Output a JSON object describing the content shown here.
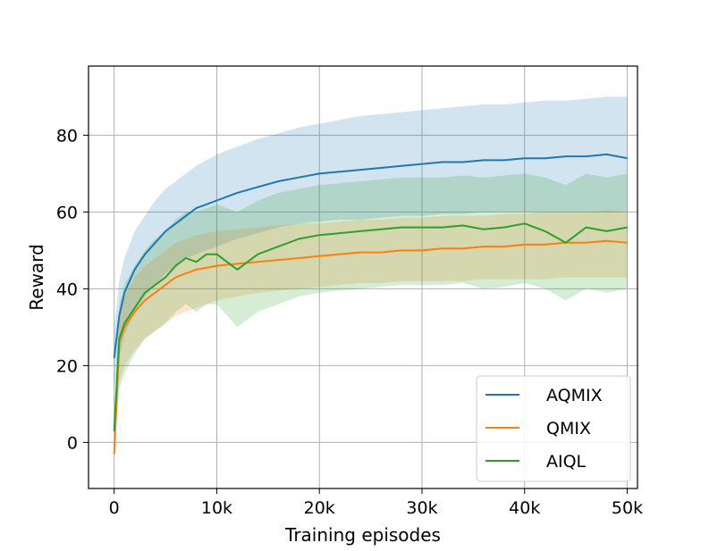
{
  "chart_data": {
    "type": "line",
    "title": "",
    "xlabel": "Training episodes",
    "ylabel": "Reward",
    "xlim": [
      -2500,
      51000
    ],
    "ylim": [
      -12,
      98
    ],
    "xticks": [
      0,
      10000,
      20000,
      30000,
      40000,
      50000
    ],
    "xtick_labels": [
      "0",
      "10k",
      "20k",
      "30k",
      "40k",
      "50k"
    ],
    "yticks": [
      0,
      20,
      40,
      60,
      80
    ],
    "ytick_labels": [
      "0",
      "20",
      "40",
      "60",
      "80"
    ],
    "grid": true,
    "legend_position": "lower-right",
    "x": [
      0,
      500,
      1000,
      2000,
      3000,
      4000,
      5000,
      6000,
      7000,
      8000,
      9000,
      10000,
      12000,
      14000,
      16000,
      18000,
      20000,
      22000,
      24000,
      26000,
      28000,
      30000,
      32000,
      34000,
      36000,
      38000,
      40000,
      42000,
      44000,
      46000,
      48000,
      50000
    ],
    "series": [
      {
        "name": "AQMIX",
        "color": "#1f77b4",
        "values": [
          22,
          33,
          39,
          45,
          49,
          52,
          55,
          57,
          59,
          61,
          62,
          63,
          65,
          66.5,
          68,
          69,
          70,
          70.5,
          71,
          71.5,
          72,
          72.5,
          73,
          73,
          73.5,
          73.5,
          74,
          74,
          74.5,
          74.5,
          75,
          74
        ],
        "lower": [
          14,
          22,
          28,
          34,
          38,
          41,
          44,
          46,
          48,
          49,
          50,
          51,
          53,
          54.5,
          56,
          57,
          57.5,
          58,
          58,
          58.5,
          59,
          59,
          59.5,
          59.5,
          60,
          60,
          60,
          60,
          60,
          60,
          60,
          60
        ],
        "upper": [
          30,
          42,
          48,
          55,
          59,
          63,
          66,
          68,
          70,
          72,
          73.5,
          75,
          77,
          79,
          80.5,
          82,
          83,
          84,
          85,
          85.5,
          86,
          86.5,
          87,
          87.5,
          88,
          88,
          88.5,
          89,
          89,
          89.5,
          90,
          90
        ]
      },
      {
        "name": "QMIX",
        "color": "#ff7f0e",
        "values": [
          -3,
          26,
          30,
          34,
          37,
          39,
          41,
          43,
          44,
          45,
          45.5,
          46,
          46.5,
          47,
          47.5,
          48,
          48.5,
          49,
          49.5,
          49.5,
          50,
          50,
          50.5,
          50.5,
          51,
          51,
          51.5,
          51.5,
          52,
          52,
          52.5,
          52
        ],
        "lower": [
          -3,
          16,
          20,
          24,
          27,
          29,
          31,
          33,
          34,
          35,
          36,
          37,
          38,
          39,
          39.5,
          40,
          40.5,
          41,
          41.5,
          41.5,
          42,
          42,
          42,
          42,
          42.5,
          42.5,
          42.5,
          42.5,
          43,
          43,
          43,
          43
        ],
        "upper": [
          5,
          34,
          38,
          43,
          46,
          48,
          50,
          52,
          53,
          54,
          54.5,
          55,
          55.5,
          56,
          56.5,
          57,
          57,
          57.5,
          58,
          58,
          58.5,
          58.5,
          59,
          59,
          59,
          59.5,
          59.5,
          60,
          60,
          60,
          60.5,
          60
        ]
      },
      {
        "name": "AIQL",
        "color": "#2ca02c",
        "values": [
          3,
          27,
          31,
          35,
          39,
          41,
          43,
          46,
          48,
          47,
          49,
          49,
          45,
          49,
          51,
          53,
          54,
          54.5,
          55,
          55.5,
          56,
          56,
          56,
          56.5,
          55.5,
          56,
          57,
          55,
          52,
          56,
          55,
          56
        ],
        "lower": [
          -2,
          14,
          18,
          23,
          27,
          29,
          31,
          34,
          36,
          34,
          36,
          36,
          30,
          34,
          36,
          38,
          39,
          39.5,
          40,
          40.5,
          41,
          41,
          41,
          41.5,
          40,
          40.5,
          41.5,
          40,
          37,
          40,
          39,
          40
        ],
        "upper": [
          8,
          36,
          41,
          46,
          50,
          53,
          55,
          58,
          60,
          60,
          61,
          62,
          60,
          63,
          65,
          66,
          67,
          67.5,
          68,
          68.5,
          69,
          69,
          69,
          69.5,
          69,
          69.5,
          70,
          69,
          67,
          70,
          69,
          70
        ]
      }
    ]
  }
}
